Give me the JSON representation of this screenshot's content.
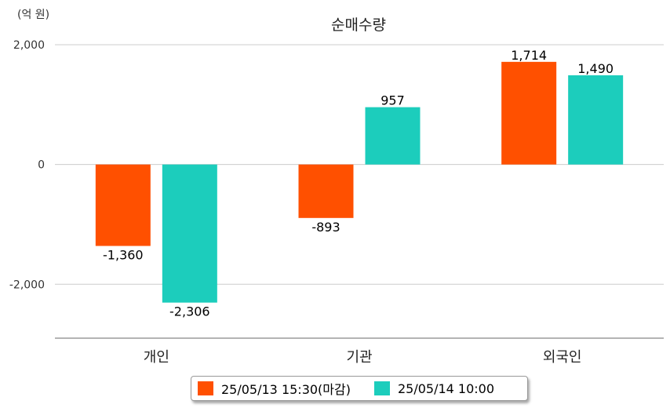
{
  "chart_data": {
    "type": "bar",
    "title": "순매수량",
    "unit_label": "(억 원)",
    "categories": [
      "개인",
      "기관",
      "외국인"
    ],
    "series": [
      {
        "name": "25/05/13 15:30(마감)",
        "color": "#ff5000",
        "values": [
          -1360,
          -893,
          1714
        ]
      },
      {
        "name": "25/05/14 10:00",
        "color": "#1ccdbc",
        "values": [
          -2306,
          957,
          1490
        ]
      }
    ],
    "value_labels": [
      [
        "-1,360",
        "-893",
        "1,714"
      ],
      [
        "-2,306",
        "957",
        "1,490"
      ]
    ],
    "yticks": [
      {
        "value": 2000,
        "label": "2,000"
      },
      {
        "value": 0,
        "label": "0"
      },
      {
        "value": -2000,
        "label": "-2,000"
      }
    ],
    "ylim": [
      -2900,
      2000
    ],
    "grid": true,
    "legend_position": "bottom"
  }
}
